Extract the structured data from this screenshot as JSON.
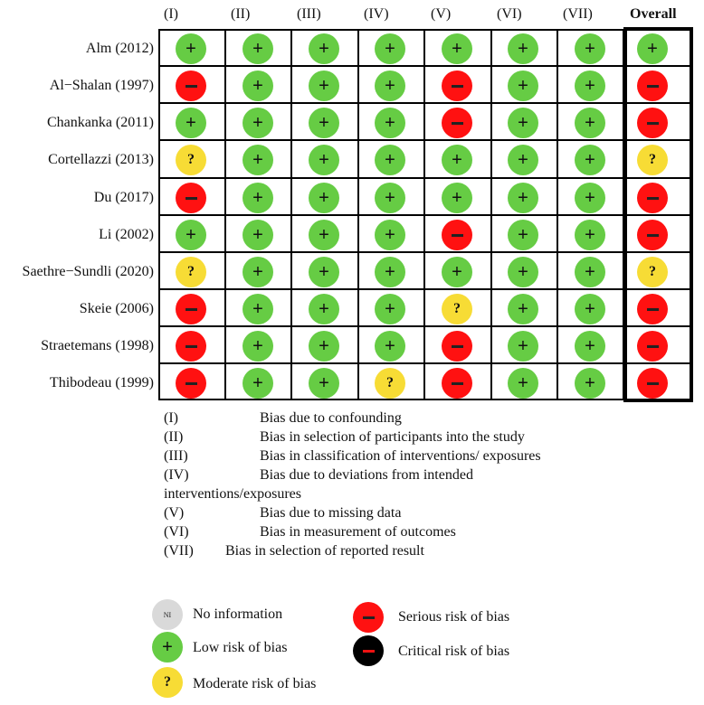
{
  "header": {
    "domains": [
      "(I)",
      "(II)",
      "(III)",
      "(IV)",
      "(V)",
      "(VI)",
      "(VII)"
    ],
    "overall": "Overall"
  },
  "symbols": {
    "low": "+",
    "moderate": "?",
    "serious": "−",
    "critical": "−",
    "ni": "NI"
  },
  "colors": {
    "low": "#66cc44",
    "moderate": "#f7dc35",
    "serious": "#ff1111",
    "critical": "#000000",
    "ni": "#d9d9d9"
  },
  "studies": [
    {
      "name": "Alm (2012)",
      "ratings": [
        "low",
        "low",
        "low",
        "low",
        "low",
        "low",
        "low"
      ],
      "overall": "low"
    },
    {
      "name": "Al−Shalan (1997)",
      "ratings": [
        "serious",
        "low",
        "low",
        "low",
        "serious",
        "low",
        "low"
      ],
      "overall": "serious"
    },
    {
      "name": "Chankanka (2011)",
      "ratings": [
        "low",
        "low",
        "low",
        "low",
        "serious",
        "low",
        "low"
      ],
      "overall": "serious"
    },
    {
      "name": "Cortellazzi (2013)",
      "ratings": [
        "moderate",
        "low",
        "low",
        "low",
        "low",
        "low",
        "low"
      ],
      "overall": "moderate"
    },
    {
      "name": "Du (2017)",
      "ratings": [
        "serious",
        "low",
        "low",
        "low",
        "low",
        "low",
        "low"
      ],
      "overall": "serious"
    },
    {
      "name": "Li (2002)",
      "ratings": [
        "low",
        "low",
        "low",
        "low",
        "serious",
        "low",
        "low"
      ],
      "overall": "serious"
    },
    {
      "name": "Saethre−Sundli (2020)",
      "ratings": [
        "moderate",
        "low",
        "low",
        "low",
        "low",
        "low",
        "low"
      ],
      "overall": "moderate"
    },
    {
      "name": "Skeie (2006)",
      "ratings": [
        "serious",
        "low",
        "low",
        "low",
        "moderate",
        "low",
        "low"
      ],
      "overall": "serious"
    },
    {
      "name": "Straetemans (1998)",
      "ratings": [
        "serious",
        "low",
        "low",
        "low",
        "serious",
        "low",
        "low"
      ],
      "overall": "serious"
    },
    {
      "name": "Thibodeau (1999)",
      "ratings": [
        "serious",
        "low",
        "low",
        "moderate",
        "serious",
        "low",
        "low"
      ],
      "overall": "serious"
    }
  ],
  "definitions": [
    {
      "code": "(I)",
      "text": "Bias due to confounding"
    },
    {
      "code": "(II)",
      "text": "Bias in selection of participants into the study"
    },
    {
      "code": "(III)",
      "text": "Bias in classification of interventions/ exposures"
    },
    {
      "code": "(IV)",
      "text": "Bias due to deviations from intended",
      "continuation": "interventions/exposures"
    },
    {
      "code": "(V)",
      "text": "Bias due to missing data"
    },
    {
      "code": "(VI)",
      "text": "Bias in measurement of outcomes"
    },
    {
      "code": "(VII)",
      "text": "Bias in selection of reported result"
    }
  ],
  "legend": {
    "ni": "No information",
    "low": "Low risk of bias",
    "moderate": "Moderate risk of bias",
    "serious": "Serious risk of bias",
    "critical": "Critical risk of bias"
  }
}
